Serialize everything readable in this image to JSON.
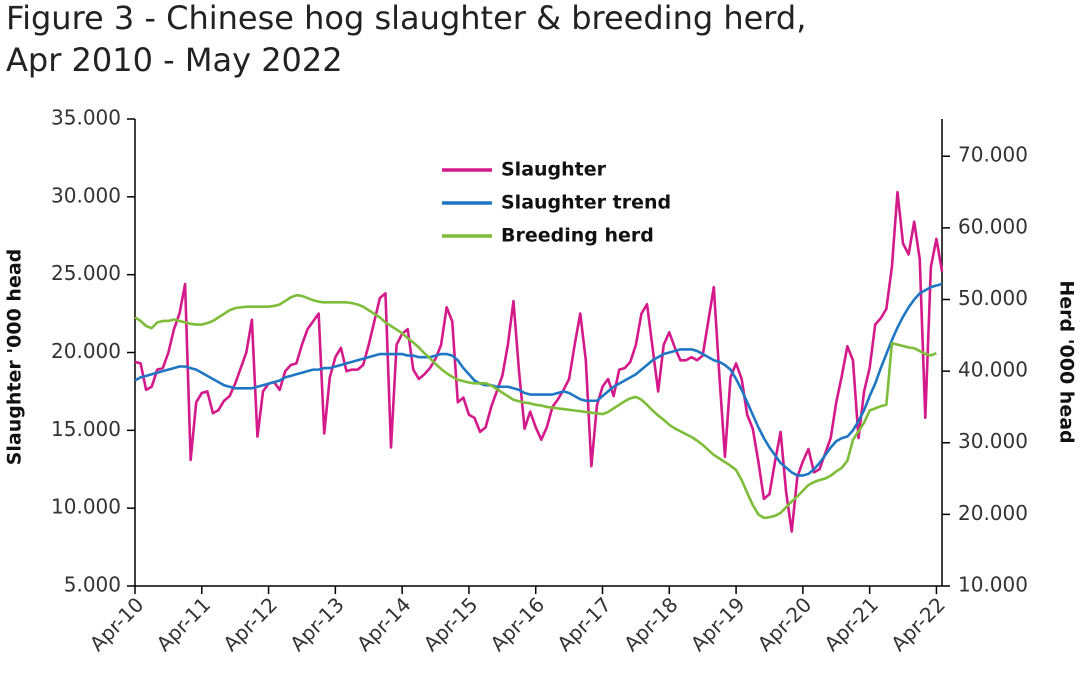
{
  "chart_data": {
    "type": "line",
    "title": [
      "Figure 3 - Chinese hog slaughter & breeding herd,",
      "Apr 2010 - May 2022"
    ],
    "y_label": "Slaughter '000 head",
    "y2_label": "Herd '000 head",
    "legend": "top-center",
    "x": [
      "2010-04",
      "2010-05",
      "2010-06",
      "2010-07",
      "2010-08",
      "2010-09",
      "2010-10",
      "2010-11",
      "2010-12",
      "2011-01",
      "2011-02",
      "2011-03",
      "2011-04",
      "2011-05",
      "2011-06",
      "2011-07",
      "2011-08",
      "2011-09",
      "2011-10",
      "2011-11",
      "2011-12",
      "2012-01",
      "2012-02",
      "2012-03",
      "2012-04",
      "2012-05",
      "2012-06",
      "2012-07",
      "2012-08",
      "2012-09",
      "2012-10",
      "2012-11",
      "2012-12",
      "2013-01",
      "2013-02",
      "2013-03",
      "2013-04",
      "2013-05",
      "2013-06",
      "2013-07",
      "2013-08",
      "2013-09",
      "2013-10",
      "2013-11",
      "2013-12",
      "2014-01",
      "2014-02",
      "2014-03",
      "2014-04",
      "2014-05",
      "2014-06",
      "2014-07",
      "2014-08",
      "2014-09",
      "2014-10",
      "2014-11",
      "2014-12",
      "2015-01",
      "2015-02",
      "2015-03",
      "2015-04",
      "2015-05",
      "2015-06",
      "2015-07",
      "2015-08",
      "2015-09",
      "2015-10",
      "2015-11",
      "2015-12",
      "2016-01",
      "2016-02",
      "2016-03",
      "2016-04",
      "2016-05",
      "2016-06",
      "2016-07",
      "2016-08",
      "2016-09",
      "2016-10",
      "2016-11",
      "2016-12",
      "2017-01",
      "2017-02",
      "2017-03",
      "2017-04",
      "2017-05",
      "2017-06",
      "2017-07",
      "2017-08",
      "2017-09",
      "2017-10",
      "2017-11",
      "2017-12",
      "2018-01",
      "2018-02",
      "2018-03",
      "2018-04",
      "2018-05",
      "2018-06",
      "2018-07",
      "2018-08",
      "2018-09",
      "2018-10",
      "2018-11",
      "2018-12",
      "2019-01",
      "2019-02",
      "2019-03",
      "2019-04",
      "2019-05",
      "2019-06",
      "2019-07",
      "2019-08",
      "2019-09",
      "2019-10",
      "2019-11",
      "2019-12",
      "2020-01",
      "2020-02",
      "2020-03",
      "2020-04",
      "2020-05",
      "2020-06",
      "2020-07",
      "2020-08",
      "2020-09",
      "2020-10",
      "2020-11",
      "2020-12",
      "2021-01",
      "2021-02",
      "2021-03",
      "2021-04",
      "2021-05",
      "2021-06",
      "2021-07",
      "2021-08",
      "2021-09",
      "2021-10",
      "2021-11",
      "2021-12",
      "2022-01",
      "2022-02",
      "2022-03",
      "2022-04",
      "2022-05"
    ],
    "xlim": [
      "2010-04",
      "2022-05"
    ],
    "xticks": [
      {
        "value": "2010-04",
        "label": "Apr-10"
      },
      {
        "value": "2011-04",
        "label": "Apr-11"
      },
      {
        "value": "2012-04",
        "label": "Apr-12"
      },
      {
        "value": "2013-04",
        "label": "Apr-13"
      },
      {
        "value": "2014-04",
        "label": "Apr-14"
      },
      {
        "value": "2015-04",
        "label": "Apr-15"
      },
      {
        "value": "2016-04",
        "label": "Apr-16"
      },
      {
        "value": "2017-04",
        "label": "Apr-17"
      },
      {
        "value": "2018-04",
        "label": "Apr-18"
      },
      {
        "value": "2019-04",
        "label": "Apr-19"
      },
      {
        "value": "2020-04",
        "label": "Apr-20"
      },
      {
        "value": "2021-04",
        "label": "Apr-21"
      },
      {
        "value": "2022-04",
        "label": "Apr-22"
      }
    ],
    "ylim": [
      5000,
      35000
    ],
    "yticks": [
      {
        "value": 5000,
        "label": "5.000"
      },
      {
        "value": 10000,
        "label": "10.000"
      },
      {
        "value": 15000,
        "label": "15.000"
      },
      {
        "value": 20000,
        "label": "20.000"
      },
      {
        "value": 25000,
        "label": "25.000"
      },
      {
        "value": 30000,
        "label": "30.000"
      },
      {
        "value": 35000,
        "label": "35.000"
      }
    ],
    "y2lim": [
      10000,
      75200
    ],
    "y2ticks": [
      {
        "value": 10000,
        "label": "10.000"
      },
      {
        "value": 20000,
        "label": "20.000"
      },
      {
        "value": 30000,
        "label": "30.000"
      },
      {
        "value": 40000,
        "label": "40.000"
      },
      {
        "value": 50000,
        "label": "50.000"
      },
      {
        "value": 60000,
        "label": "60.000"
      },
      {
        "value": 70000,
        "label": "70.000"
      }
    ],
    "series": [
      {
        "name": "Slaughter",
        "color": "#d4198b",
        "values": [
          19400,
          19300,
          17600,
          17800,
          18900,
          19000,
          20000,
          21500,
          22500,
          24400,
          13100,
          16800,
          17400,
          17500,
          16100,
          16300,
          16900,
          17200,
          18000,
          19000,
          20000,
          22100,
          14600,
          17500,
          18000,
          18100,
          17600,
          18800,
          19200,
          19300,
          20500,
          21500,
          22000,
          22500,
          14800,
          18400,
          19700,
          20300,
          18800,
          18900,
          18900,
          19200,
          20500,
          22000,
          23500,
          23800,
          13900,
          20500,
          21200,
          21500,
          18900,
          18300,
          18600,
          19000,
          19600,
          20500,
          22900,
          22000,
          16800,
          17100,
          16000,
          15800,
          14900,
          15200,
          16500,
          17500,
          18500,
          20500,
          23300,
          18800,
          15100,
          16200,
          15200,
          14400,
          15200,
          16500,
          17000,
          17600,
          18300,
          20500,
          22500,
          19500,
          12700,
          16600,
          17800,
          18300,
          17200,
          18900,
          19000,
          19400,
          20500,
          22500,
          23100,
          20300,
          17500,
          20500,
          21300,
          20300,
          19500,
          19500,
          19700,
          19500,
          19800,
          22000,
          24200,
          18500,
          13300,
          18400,
          19300,
          18300,
          16000,
          15100,
          13000,
          10600,
          10900,
          13000,
          14900,
          11000,
          8500,
          12000,
          13000,
          13800,
          12300,
          12500,
          13500,
          14500,
          16800,
          18500,
          20400,
          19500,
          14500,
          17500,
          19000,
          21800,
          22200,
          22800,
          25500,
          30300,
          27000,
          26300,
          28400,
          26000,
          15800,
          25500,
          27300,
          25200
        ]
      },
      {
        "name": "Slaughter trend",
        "color": "#1f77c4",
        "values": [
          18200,
          18400,
          18500,
          18600,
          18700,
          18800,
          18900,
          19000,
          19100,
          19100,
          19000,
          18900,
          18700,
          18500,
          18300,
          18100,
          17900,
          17800,
          17700,
          17700,
          17700,
          17700,
          17800,
          17900,
          18000,
          18100,
          18200,
          18400,
          18500,
          18600,
          18700,
          18800,
          18900,
          18900,
          19000,
          19000,
          19100,
          19200,
          19300,
          19400,
          19500,
          19600,
          19700,
          19800,
          19900,
          19900,
          19900,
          19900,
          19900,
          19800,
          19800,
          19700,
          19700,
          19700,
          19800,
          19900,
          19900,
          19800,
          19500,
          19000,
          18600,
          18200,
          18000,
          17900,
          17900,
          17800,
          17800,
          17800,
          17700,
          17600,
          17400,
          17300,
          17300,
          17300,
          17300,
          17300,
          17400,
          17500,
          17400,
          17200,
          17000,
          16900,
          16900,
          16900,
          17200,
          17500,
          17800,
          18000,
          18200,
          18400,
          18600,
          18900,
          19200,
          19500,
          19700,
          19900,
          20000,
          20100,
          20200,
          20200,
          20200,
          20100,
          19900,
          19700,
          19500,
          19400,
          19200,
          18900,
          18300,
          17600,
          16800,
          16000,
          15200,
          14500,
          13900,
          13400,
          12900,
          12600,
          12300,
          12100,
          12100,
          12200,
          12500,
          12900,
          13400,
          13900,
          14300,
          14500,
          14600,
          15000,
          15600,
          16300,
          17200,
          18000,
          19000,
          19900,
          20800,
          21600,
          22300,
          22900,
          23400,
          23800,
          24000,
          24200,
          24300,
          24400
        ]
      },
      {
        "name": "Breeding herd",
        "color": "#7dbd3a",
        "axis": "y2",
        "values": [
          47500,
          47000,
          46300,
          46000,
          46800,
          47000,
          47000,
          47200,
          47000,
          46800,
          46600,
          46500,
          46500,
          46700,
          47000,
          47500,
          48000,
          48500,
          48800,
          48900,
          49000,
          49000,
          49000,
          49000,
          49000,
          49100,
          49300,
          49800,
          50300,
          50600,
          50500,
          50200,
          49900,
          49700,
          49600,
          49600,
          49600,
          49600,
          49600,
          49500,
          49300,
          49000,
          48500,
          48000,
          47500,
          46800,
          46300,
          45800,
          45300,
          44600,
          44000,
          43300,
          42500,
          41800,
          41000,
          40300,
          39700,
          39200,
          38800,
          38600,
          38400,
          38300,
          38300,
          38300,
          38000,
          37500,
          37000,
          36500,
          36000,
          35800,
          35600,
          35500,
          35300,
          35200,
          35000,
          34900,
          34800,
          34700,
          34600,
          34500,
          34400,
          34300,
          34200,
          34100,
          34000,
          34300,
          34800,
          35300,
          35800,
          36200,
          36400,
          36000,
          35300,
          34500,
          33800,
          33200,
          32500,
          32000,
          31600,
          31200,
          30800,
          30300,
          29700,
          29000,
          28300,
          27800,
          27300,
          26800,
          26200,
          24800,
          23000,
          21300,
          20000,
          19500,
          19600,
          19800,
          20200,
          21000,
          21800,
          22500,
          23300,
          24100,
          24500,
          24800,
          25000,
          25400,
          26000,
          26500,
          27500,
          30400,
          31600,
          32800,
          34500,
          34800,
          35100,
          35300,
          43900,
          43700,
          43500,
          43300,
          43200,
          42800,
          42400,
          42200,
          42500,
          null
        ]
      }
    ]
  }
}
